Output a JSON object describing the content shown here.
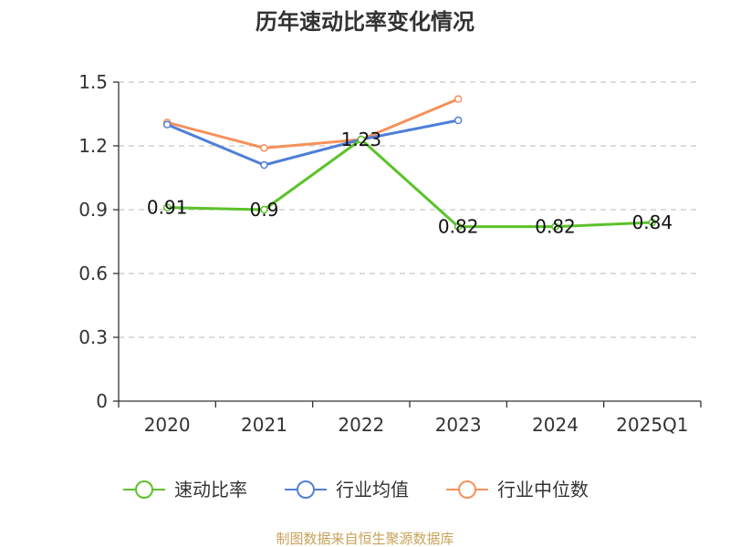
{
  "chart_data": {
    "type": "line",
    "title": "历年速动比率变化情况",
    "categories": [
      "2020",
      "2021",
      "2022",
      "2023",
      "2024",
      "2025Q1"
    ],
    "ylim": [
      0,
      1.5
    ],
    "yticks": [
      "0",
      "0.3",
      "0.6",
      "0.9",
      "1.2",
      "1.5"
    ],
    "grid": true,
    "legend_position": "bottom",
    "series": [
      {
        "name": "速动比率",
        "color": "#5cc22a",
        "values": [
          0.91,
          0.9,
          1.23,
          0.82,
          0.82,
          0.84
        ],
        "labels": [
          "0.91",
          "0.9",
          "1.23",
          "0.82",
          "0.82",
          "0.84"
        ]
      },
      {
        "name": "行业均值",
        "color": "#4f7fd8",
        "values": [
          1.3,
          1.11,
          1.23,
          1.32,
          null,
          null
        ]
      },
      {
        "name": "行业中位数",
        "color": "#f5915a",
        "values": [
          1.31,
          1.19,
          1.23,
          1.42,
          null,
          null
        ]
      }
    ]
  },
  "source_text": "制图数据来自恒生聚源数据库"
}
